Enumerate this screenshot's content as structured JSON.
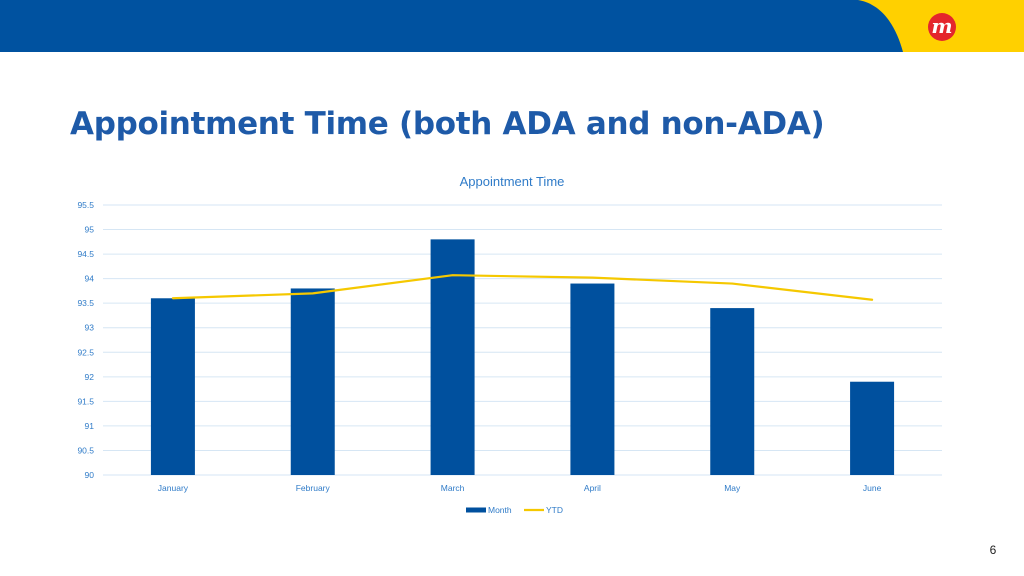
{
  "slide": {
    "title": "Appointment Time (both ADA and non-ADA)",
    "page_number": "6",
    "logo_letter": "m"
  },
  "colors": {
    "band_blue": "#0052a0",
    "band_yellow": "#ffd000",
    "title_blue": "#1e5aa8",
    "month_bar": "#00509e",
    "ytd_line": "#f5c800",
    "grid": "#d6e6f4",
    "axis_text": "#2f7bc8"
  },
  "chart_data": {
    "type": "bar",
    "title": "Appointment Time",
    "categories": [
      "January",
      "February",
      "March",
      "April",
      "May",
      "June"
    ],
    "series": [
      {
        "name": "Month",
        "type": "bar",
        "values": [
          93.6,
          93.8,
          94.8,
          93.9,
          93.4,
          91.9
        ]
      },
      {
        "name": "YTD",
        "type": "line",
        "values": [
          93.6,
          93.7,
          94.07,
          94.02,
          93.9,
          93.57
        ]
      }
    ],
    "ylim": [
      90,
      95.5
    ],
    "yticks": [
      "90",
      "90.5",
      "91",
      "91.5",
      "92",
      "92.5",
      "93",
      "93.5",
      "94",
      "94.5",
      "95",
      "95.5"
    ],
    "grid": true,
    "legend": "bottom"
  }
}
